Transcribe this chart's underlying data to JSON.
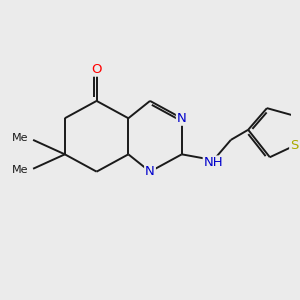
{
  "background_color": "#ebebeb",
  "bond_color": "#1a1a1a",
  "bond_width": 1.4,
  "atom_colors": {
    "O": "#ff0000",
    "N": "#0000cc",
    "S": "#aaaa00",
    "C": "#1a1a1a"
  },
  "font_size": 9.5,
  "figsize": [
    3.0,
    3.0
  ],
  "dpi": 100,
  "xlim": [
    0,
    10
  ],
  "ylim": [
    0,
    10
  ]
}
